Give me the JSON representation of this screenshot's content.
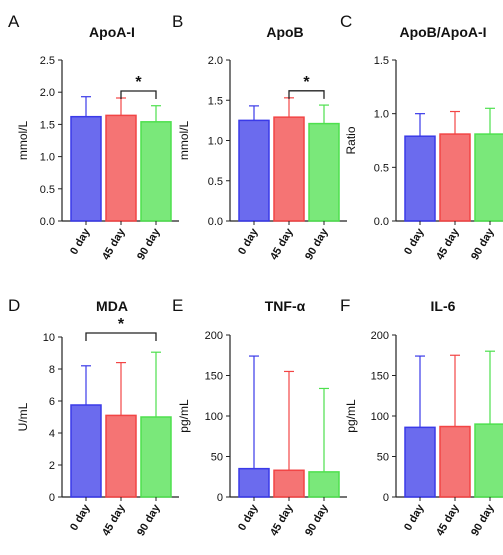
{
  "chart_data": [
    {
      "panel_label": "A",
      "type": "bar",
      "title": "ApoA-I",
      "ylabel": "mmol/L",
      "categories": [
        "0 day",
        "45 day",
        "90 day"
      ],
      "values": [
        1.62,
        1.64,
        1.54
      ],
      "errors": [
        0.31,
        0.27,
        0.25
      ],
      "ylim": [
        0,
        2.5
      ],
      "yticks": [
        "0.0",
        "0.5",
        "1.0",
        "1.5",
        "2.0",
        "2.5"
      ],
      "significance": [
        {
          "from": 1,
          "to": 2,
          "label": "*"
        }
      ],
      "colors": [
        "#3a3ae8",
        "#f24545",
        "#4ee04e"
      ]
    },
    {
      "panel_label": "B",
      "type": "bar",
      "title": "ApoB",
      "ylabel": "mmol/L",
      "categories": [
        "0 day",
        "45 day",
        "90 day"
      ],
      "values": [
        1.25,
        1.29,
        1.21
      ],
      "errors": [
        0.18,
        0.24,
        0.23
      ],
      "ylim": [
        0,
        2.0
      ],
      "yticks": [
        "0.0",
        "0.5",
        "1.0",
        "1.5",
        "2.0"
      ],
      "significance": [
        {
          "from": 1,
          "to": 2,
          "label": "*"
        }
      ],
      "colors": [
        "#3a3ae8",
        "#f24545",
        "#4ee04e"
      ]
    },
    {
      "panel_label": "C",
      "type": "bar",
      "title": "ApoB/ApoA-I",
      "ylabel": "Ratio",
      "categories": [
        "0 day",
        "45 day",
        "90 day"
      ],
      "values": [
        0.79,
        0.81,
        0.81
      ],
      "errors": [
        0.21,
        0.21,
        0.24
      ],
      "ylim": [
        0,
        1.5
      ],
      "yticks": [
        "0.0",
        "0.5",
        "1.0",
        "1.5"
      ],
      "significance": [],
      "colors": [
        "#3a3ae8",
        "#f24545",
        "#4ee04e"
      ]
    },
    {
      "panel_label": "D",
      "type": "bar",
      "title": "MDA",
      "ylabel": "U/mL",
      "categories": [
        "0 day",
        "45 day",
        "90 day"
      ],
      "values": [
        5.75,
        5.1,
        5.0
      ],
      "errors": [
        2.45,
        3.3,
        4.05
      ],
      "ylim": [
        0,
        10
      ],
      "yticks": [
        "0",
        "2",
        "4",
        "6",
        "8",
        "10"
      ],
      "significance": [
        {
          "from": 0,
          "to": 2,
          "label": "*"
        }
      ],
      "colors": [
        "#3a3ae8",
        "#f24545",
        "#4ee04e"
      ]
    },
    {
      "panel_label": "E",
      "type": "bar",
      "title": "TNF-α",
      "ylabel": "pg/mL",
      "categories": [
        "0 day",
        "45 day",
        "90 day"
      ],
      "values": [
        35,
        33,
        31
      ],
      "errors": [
        139,
        122,
        103
      ],
      "ylim": [
        0,
        200
      ],
      "yticks": [
        "0",
        "50",
        "100",
        "150",
        "200"
      ],
      "significance": [],
      "colors": [
        "#3a3ae8",
        "#f24545",
        "#4ee04e"
      ]
    },
    {
      "panel_label": "F",
      "type": "bar",
      "title": "IL-6",
      "ylabel": "pg/mL",
      "categories": [
        "0 day",
        "45 day",
        "90 day"
      ],
      "values": [
        86,
        87,
        90
      ],
      "errors": [
        88,
        88,
        90
      ],
      "ylim": [
        0,
        200
      ],
      "yticks": [
        "0",
        "50",
        "100",
        "150",
        "200"
      ],
      "significance": [],
      "colors": [
        "#3a3ae8",
        "#f24545",
        "#4ee04e"
      ]
    }
  ]
}
